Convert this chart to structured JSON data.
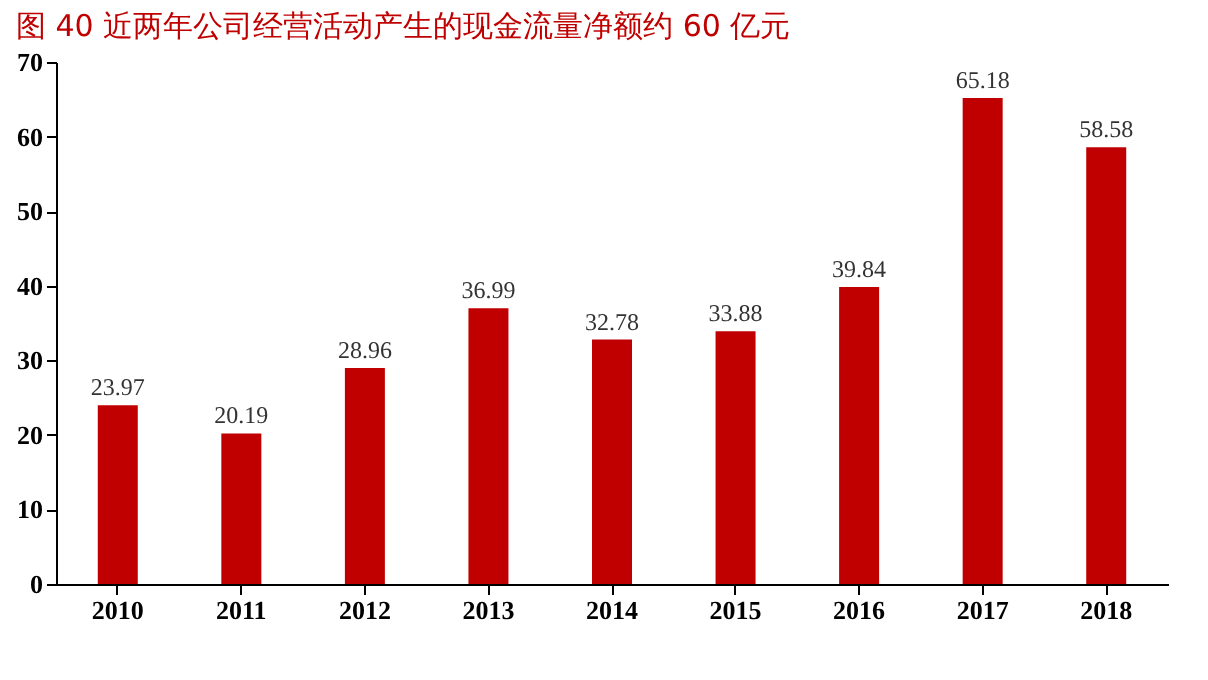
{
  "chart_data": {
    "type": "bar",
    "title": "图 40   近两年公司经营活动产生的现金流量净额约 60 亿元",
    "categories": [
      "2010",
      "2011",
      "2012",
      "2013",
      "2014",
      "2015",
      "2016",
      "2017",
      "2018"
    ],
    "values": [
      23.97,
      20.19,
      28.96,
      36.99,
      32.78,
      33.88,
      39.84,
      65.18,
      58.58
    ],
    "color": "#c00000",
    "ylim": [
      0,
      70
    ],
    "yticks": [
      0,
      10,
      20,
      30,
      40,
      50,
      60,
      70
    ],
    "data_labels": true,
    "grid": false
  }
}
